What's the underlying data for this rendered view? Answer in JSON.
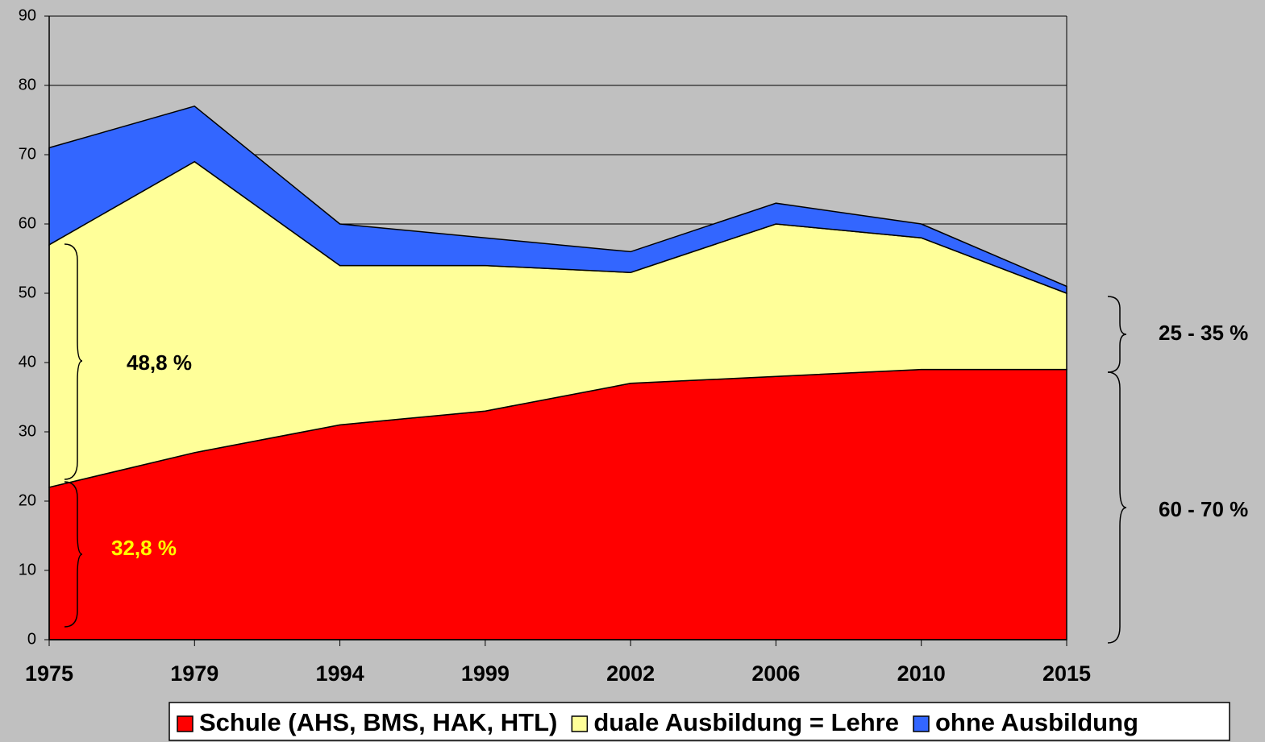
{
  "chart_data": {
    "type": "stacked_area",
    "categories": [
      "1975",
      "1979",
      "1994",
      "1999",
      "2002",
      "2006",
      "2010",
      "2015"
    ],
    "series": [
      {
        "name": "Schule (AHS, BMS, HAK, HTL)",
        "color": "#ff0000",
        "values": [
          22,
          27,
          31,
          33,
          37,
          38,
          39,
          39
        ]
      },
      {
        "name": "duale Ausbildung = Lehre",
        "color": "#ffff99",
        "values": [
          35,
          42,
          23,
          21,
          16,
          22,
          19,
          11
        ]
      },
      {
        "name": "ohne Ausbildung",
        "color": "#3366ff",
        "values": [
          14,
          8,
          6,
          4,
          3,
          3,
          2,
          1
        ]
      }
    ],
    "ylim": [
      0,
      90
    ],
    "yticks": [
      0,
      10,
      20,
      30,
      40,
      50,
      60,
      70,
      80,
      90
    ],
    "grid": true,
    "annotations": [
      "48,8 %",
      "32,8 %",
      "25 - 35 %",
      "60 - 70 %"
    ]
  }
}
